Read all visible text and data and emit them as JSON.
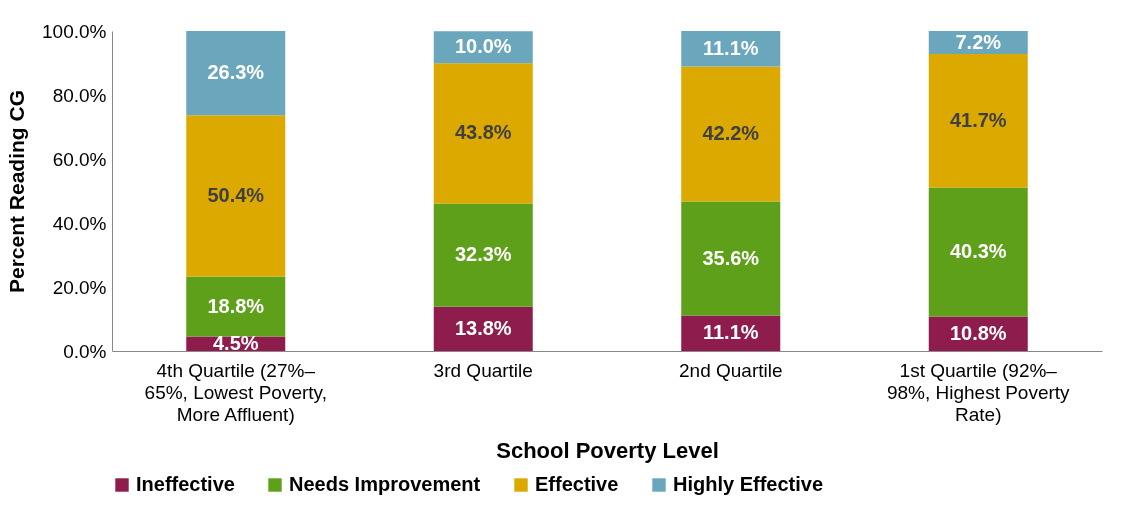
{
  "chart_data": {
    "type": "bar",
    "stacked": true,
    "xlabel": "School Poverty Level",
    "ylabel": "Percent Reading CG",
    "categories": [
      "4th Quartile (27%–65%, Lowest Poverty, More Affluent)",
      "3rd Quartile",
      "2nd Quartile",
      "1st Quartile (92%–98%, Highest Poverty Rate)"
    ],
    "ylim": [
      0,
      100
    ],
    "yticks": [
      {
        "value": 0,
        "label": "0.0%"
      },
      {
        "value": 20,
        "label": "20.0%"
      },
      {
        "value": 40,
        "label": "40.0%"
      },
      {
        "value": 60,
        "label": "60.0%"
      },
      {
        "value": 80,
        "label": "80.0%"
      },
      {
        "value": 100,
        "label": "100.0%"
      }
    ],
    "legend": "bottom",
    "series": [
      {
        "name": "Ineffective",
        "color": "#8e1c4c",
        "values": [
          4.5,
          13.8,
          11.1,
          10.8
        ],
        "value_labels": [
          "4.5%",
          "13.8%",
          "11.1%",
          "10.8%"
        ]
      },
      {
        "name": "Needs Improvement",
        "color": "#5ea01a",
        "values": [
          18.8,
          32.3,
          35.6,
          40.3
        ],
        "value_labels": [
          "18.8%",
          "32.3%",
          "35.6%",
          "40.3%"
        ]
      },
      {
        "name": "Effective",
        "color": "#dca900",
        "values": [
          50.4,
          43.8,
          42.2,
          41.7
        ],
        "value_labels": [
          "50.4%",
          "43.8%",
          "42.2%",
          "41.7%"
        ]
      },
      {
        "name": "Highly Effective",
        "color": "#6aa6bc",
        "values": [
          26.3,
          10.0,
          11.1,
          7.2
        ],
        "value_labels": [
          "26.3%",
          "10.0%",
          "11.1%",
          "7.2%"
        ]
      }
    ]
  }
}
